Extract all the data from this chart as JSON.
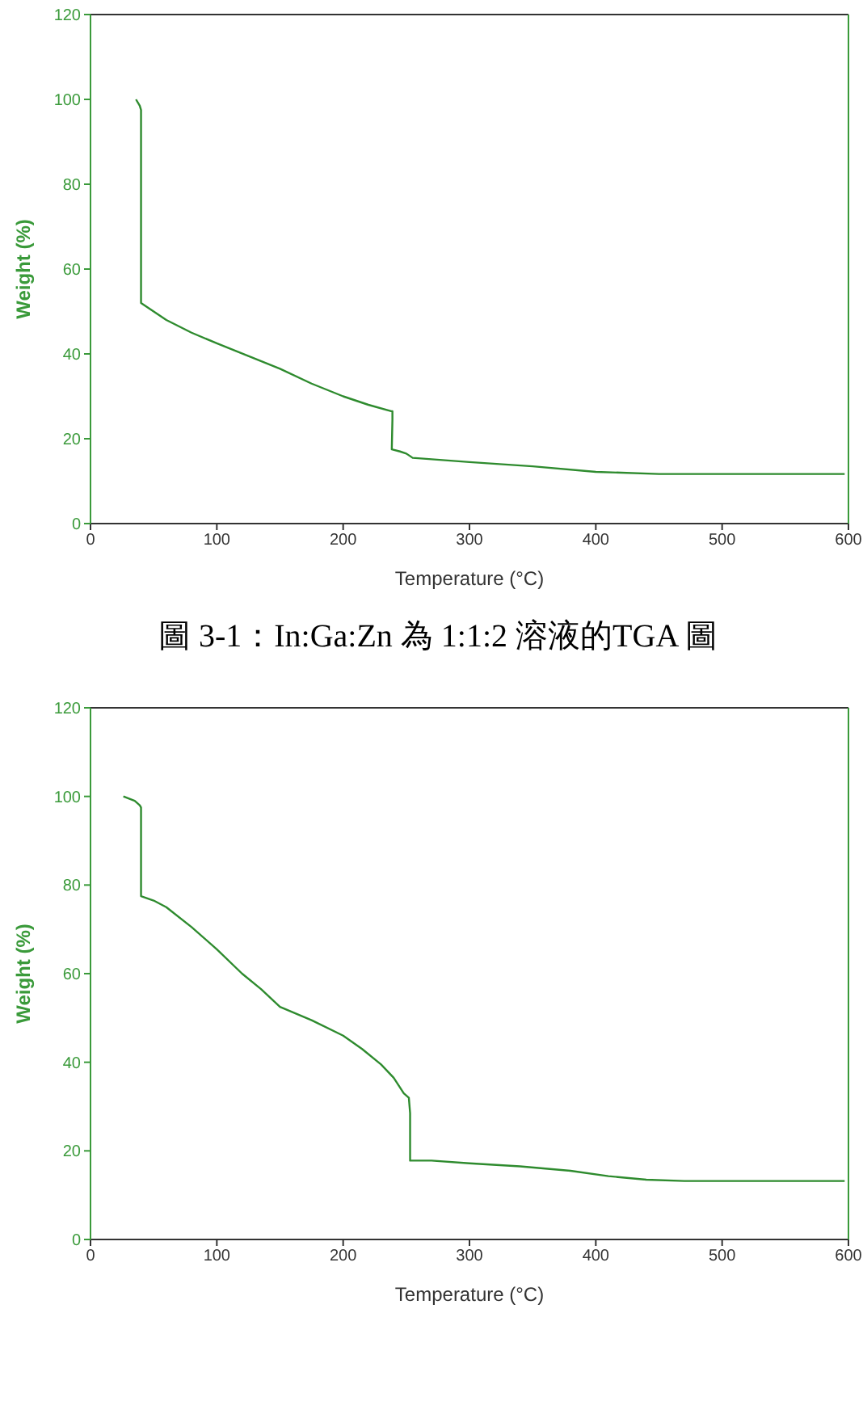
{
  "chart_data": [
    {
      "type": "line",
      "xlabel": "Temperature (°C)",
      "ylabel": "Weight (%)",
      "xlim": [
        0,
        600
      ],
      "ylim": [
        0,
        120
      ],
      "xticks": [
        0,
        100,
        200,
        300,
        400,
        500,
        600
      ],
      "yticks": [
        0,
        20,
        40,
        60,
        80,
        100,
        120
      ],
      "grid": false,
      "legend": false,
      "marker": "none",
      "line_style": "solid",
      "annotations": [
        "圖 3-1：In:Ga:Zn 為 1:1:2 溶液的TGA 圖"
      ],
      "x": [
        36,
        39,
        40,
        40,
        60,
        80,
        100,
        125,
        150,
        175,
        200,
        220,
        238,
        239,
        239,
        238.5,
        245,
        250,
        255,
        300,
        350,
        400,
        450,
        500,
        597
      ],
      "series": [
        {
          "color": "#2e8b2e",
          "values": [
            100,
            98.5,
            97.5,
            52,
            48,
            45,
            42.5,
            39.5,
            36.5,
            33,
            30,
            28,
            26.5,
            26.5,
            24.5,
            17.5,
            17,
            16.5,
            15.5,
            14.5,
            13.5,
            12.2,
            11.7,
            11.7,
            11.7
          ]
        }
      ]
    },
    {
      "type": "line",
      "xlabel": "Temperature (°C)",
      "ylabel": "Weight (%)",
      "xlim": [
        0,
        600
      ],
      "ylim": [
        0,
        120
      ],
      "xticks": [
        0,
        100,
        200,
        300,
        400,
        500,
        600
      ],
      "yticks": [
        0,
        20,
        40,
        60,
        80,
        100,
        120
      ],
      "grid": false,
      "legend": false,
      "marker": "none",
      "line_style": "solid",
      "x": [
        26,
        35,
        39,
        40,
        40,
        50,
        60,
        80,
        100,
        120,
        135,
        150,
        175,
        200,
        215,
        230,
        240,
        248,
        252,
        253,
        253,
        270,
        300,
        340,
        380,
        410,
        440,
        470,
        597
      ],
      "series": [
        {
          "color": "#2e8b2e",
          "values": [
            100,
            99,
            98,
            97.5,
            77.5,
            76.5,
            75,
            70.5,
            65.5,
            60,
            56.5,
            52.5,
            49.5,
            46,
            43,
            39.5,
            36.5,
            33,
            32,
            28.5,
            17.8,
            17.8,
            17.2,
            16.5,
            15.5,
            14.3,
            13.5,
            13.2,
            13.2
          ]
        }
      ]
    }
  ]
}
